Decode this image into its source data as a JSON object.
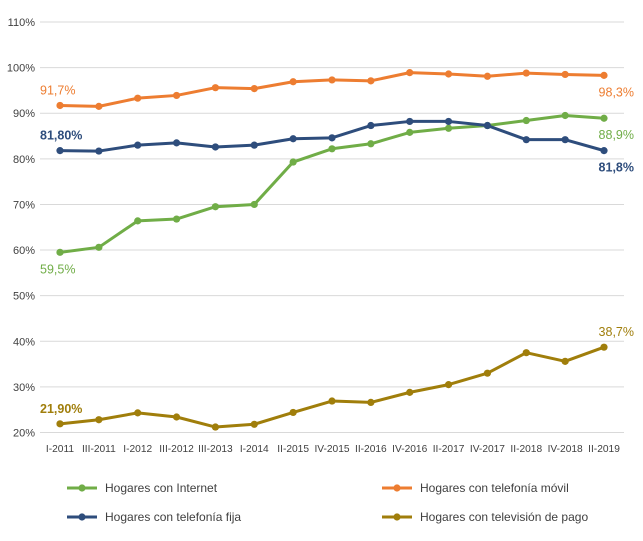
{
  "chart_data": {
    "type": "line",
    "title": "",
    "xlabel": "",
    "ylabel": "",
    "ylim": [
      20,
      110
    ],
    "ytick_step": 10,
    "ytick_suffix": "%",
    "grid": true,
    "legend_position": "bottom",
    "categories": [
      "I-2011",
      "III-2011",
      "I-2012",
      "III-2012",
      "III-2013",
      "I-2014",
      "II-2015",
      "IV-2015",
      "II-2016",
      "IV-2016",
      "II-2017",
      "IV-2017",
      "II-2018",
      "IV-2018",
      "II-2019"
    ],
    "series": [
      {
        "name": "Hogares con Internet",
        "color": "#70AD47",
        "values": [
          59.5,
          60.6,
          66.4,
          66.8,
          69.5,
          70.0,
          79.3,
          82.2,
          83.3,
          85.8,
          86.7,
          87.3,
          88.4,
          89.5,
          88.9
        ],
        "first_label": {
          "text": "59,5%",
          "bold": false,
          "position": "below"
        },
        "last_label": {
          "text": "88,9%",
          "bold": false,
          "position": "below"
        }
      },
      {
        "name": "Hogares con telefonía móvil",
        "color": "#ED7D31",
        "values": [
          91.7,
          91.5,
          93.3,
          93.9,
          95.6,
          95.4,
          96.9,
          97.3,
          97.1,
          98.9,
          98.6,
          98.1,
          98.8,
          98.5,
          98.3
        ],
        "first_label": {
          "text": "91,7%",
          "bold": false,
          "position": "above"
        },
        "last_label": {
          "text": "98,3%",
          "bold": false,
          "position": "below"
        }
      },
      {
        "name": "Hogares con telefonía fija",
        "color": "#2E4D7C",
        "values": [
          81.8,
          81.7,
          83.0,
          83.5,
          82.6,
          83.0,
          84.4,
          84.6,
          87.3,
          88.2,
          88.2,
          87.3,
          84.2,
          84.2,
          81.8
        ],
        "first_label": {
          "text": "81,80%",
          "bold": true,
          "position": "above"
        },
        "last_label": {
          "text": "81,8%",
          "bold": true,
          "position": "below"
        }
      },
      {
        "name": "Hogares con televisión de pago",
        "color": "#A07E0B",
        "values": [
          21.9,
          22.8,
          24.3,
          23.4,
          21.2,
          21.8,
          24.4,
          26.9,
          26.6,
          28.8,
          30.5,
          33.0,
          37.5,
          35.6,
          38.7
        ],
        "first_label": {
          "text": "21,90%",
          "bold": true,
          "position": "above"
        },
        "last_label": {
          "text": "38,7%",
          "bold": false,
          "position": "above"
        }
      }
    ],
    "colors": {
      "axis_text": "#404040",
      "gridline": "#D9D9D9",
      "background": "#FFFFFF"
    }
  }
}
